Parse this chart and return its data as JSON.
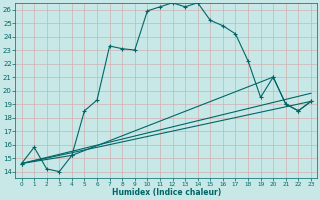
{
  "title": "",
  "xlabel": "Humidex (Indice chaleur)",
  "bg_color": "#c8e8e8",
  "grid_color": "#b0d0d0",
  "line_color": "#006666",
  "xlim": [
    -0.5,
    23.5
  ],
  "ylim": [
    13.5,
    26.5
  ],
  "xticks": [
    0,
    1,
    2,
    3,
    4,
    5,
    6,
    7,
    8,
    9,
    10,
    11,
    12,
    13,
    14,
    15,
    16,
    17,
    18,
    19,
    20,
    21,
    22,
    23
  ],
  "yticks": [
    14,
    15,
    16,
    17,
    18,
    19,
    20,
    21,
    22,
    23,
    24,
    25,
    26
  ],
  "series1_x": [
    0,
    1,
    2,
    3,
    4,
    5,
    6,
    7,
    8,
    9,
    10,
    11,
    12,
    13,
    14,
    15,
    16,
    17,
    18,
    19,
    20,
    21,
    22,
    23
  ],
  "series1_y": [
    14.6,
    15.8,
    14.2,
    14.0,
    15.2,
    18.5,
    19.3,
    23.3,
    23.1,
    23.0,
    25.9,
    26.2,
    26.5,
    26.2,
    26.5,
    25.2,
    24.8,
    24.2,
    22.2,
    19.5,
    21.0,
    19.0,
    18.5,
    19.2
  ],
  "series2_x": [
    0,
    23
  ],
  "series2_y": [
    14.6,
    19.2
  ],
  "series3_x": [
    0,
    4,
    20,
    21,
    22,
    23
  ],
  "series3_y": [
    14.6,
    15.2,
    21.0,
    19.0,
    18.5,
    19.2
  ],
  "series4_x": [
    0,
    23
  ],
  "series4_y": [
    14.6,
    19.2
  ]
}
